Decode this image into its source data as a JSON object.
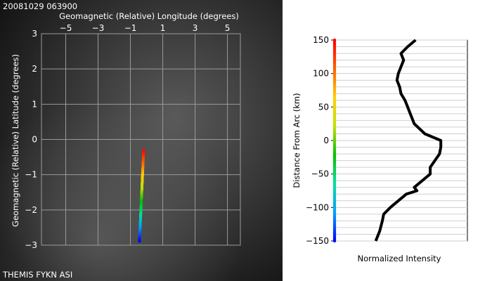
{
  "timestamp": "20081029 063900",
  "footer": "THEMIS FYKN ASI",
  "colors": {
    "sky_dark": "#1a1a1a",
    "sky_glow": "#5a5a5a",
    "grid": "#9a9a9a",
    "profile": "#000000",
    "arc_gradient": [
      "#0000ff",
      "#00a0ff",
      "#00e0a0",
      "#00c000",
      "#c0e000",
      "#ffd000",
      "#ff6000",
      "#ff0000"
    ]
  },
  "chart_data": [
    {
      "type": "scatter",
      "title": "",
      "xlabel": "Geomagnetic (Relative) Longitude (degrees)",
      "ylabel": "Geomagnetic (Relative) Latitude (degrees)",
      "xlim": [
        -6.5,
        5.8
      ],
      "ylim": [
        -3,
        3
      ],
      "xticks": [
        "−5",
        "−3",
        "−1",
        "1",
        "3",
        "5"
      ],
      "xtick_values": [
        -5,
        -3,
        -1,
        1,
        3,
        5
      ],
      "yticks": [
        "3",
        "2",
        "1",
        "0",
        "−1",
        "−2",
        "−3"
      ],
      "ytick_values": [
        3,
        2,
        1,
        0,
        -1,
        -2,
        -3
      ],
      "grid": true,
      "series": [
        {
          "x": [
            -0.18,
            -0.2,
            -0.22,
            -0.24,
            -0.26,
            -0.28,
            -0.3,
            -0.32,
            -0.34,
            -0.36,
            -0.38,
            -0.4,
            -0.42,
            -0.44
          ],
          "y": [
            -0.3,
            -0.5,
            -0.7,
            -0.9,
            -1.1,
            -1.3,
            -1.5,
            -1.7,
            -1.9,
            -2.1,
            -2.3,
            -2.5,
            -2.7,
            -2.9
          ]
        }
      ]
    },
    {
      "type": "line",
      "title": "",
      "xlabel": "Normalized Intensity",
      "ylabel": "Distance From Arc (km)",
      "xlim": [
        0,
        1
      ],
      "ylim": [
        -150,
        150
      ],
      "yticks": [
        "150",
        "100",
        "50",
        "0",
        "−50",
        "−100",
        "−150"
      ],
      "ytick_values": [
        150,
        100,
        50,
        0,
        -50,
        -100,
        -150
      ],
      "grid": true,
      "series": [
        {
          "x": [
            0.61,
            0.55,
            0.5,
            0.52,
            0.5,
            0.48,
            0.47,
            0.49,
            0.5,
            0.53,
            0.55,
            0.57,
            0.6,
            0.68,
            0.8,
            0.8,
            0.79,
            0.72,
            0.72,
            0.66,
            0.6,
            0.62,
            0.54,
            0.48,
            0.42,
            0.37,
            0.36,
            0.34,
            0.31
          ],
          "y": [
            150,
            140,
            130,
            120,
            110,
            100,
            90,
            80,
            70,
            60,
            50,
            40,
            25,
            10,
            0,
            -10,
            -20,
            -40,
            -50,
            -60,
            -70,
            -75,
            -80,
            -90,
            -100,
            -110,
            -120,
            -135,
            -150
          ]
        }
      ]
    }
  ]
}
